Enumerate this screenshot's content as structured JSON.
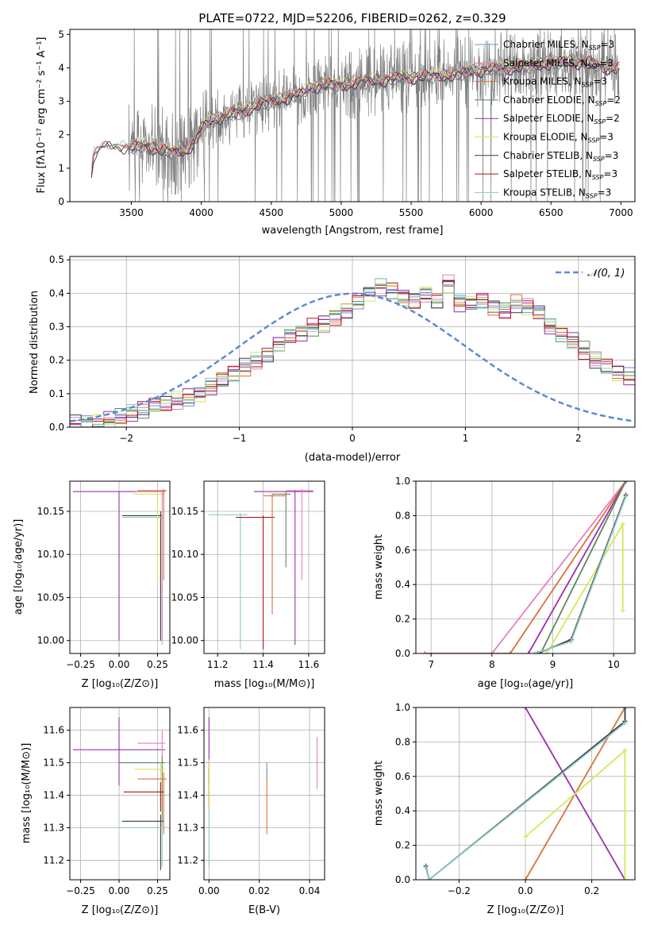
{
  "figure": {
    "title": "PLATE=0722, MJD=52206, FIBERID=0262, z=0.329"
  },
  "series_names": [
    "Chabrier MILES, N_SSP=3",
    "Salpeter MILES, N_SSP=3",
    "Kroupa MILES, N_SSP=3",
    "Chabrier ELODIE, N_SSP=2",
    "Salpeter ELODIE, N_SSP=2",
    "Kroupa ELODIE, N_SSP=3",
    "Chabrier STELIB, N_SSP=3",
    "Salpeter STELIB, N_SSP=3",
    "Kroupa STELIB, N_SSP=3"
  ],
  "legend_entries": [
    {
      "pre": "Chabrier MILES, N",
      "sub": "SSP",
      "post": "=3",
      "color": "#6f8fe6"
    },
    {
      "pre": "Salpeter MILES, N",
      "sub": "SSP",
      "post": "=3",
      "color": "#e67fbf"
    },
    {
      "pre": "Kroupa MILES, N",
      "sub": "SSP",
      "post": "=3",
      "color": "#d9733a"
    },
    {
      "pre": "Chabrier ELODIE, N",
      "sub": "SSP",
      "post": "=2",
      "color": "#5c8a5c"
    },
    {
      "pre": "Salpeter ELODIE, N",
      "sub": "SSP",
      "post": "=2",
      "color": "#9b2fae"
    },
    {
      "pre": "Kroupa ELODIE, N",
      "sub": "SSP",
      "post": "=3",
      "color": "#d4e85a"
    },
    {
      "pre": "Chabrier STELIB, N",
      "sub": "SSP",
      "post": "=3",
      "color": "#3a3a3a"
    },
    {
      "pre": "Salpeter STELIB, N",
      "sub": "SSP",
      "post": "=3",
      "color": "#b01515"
    },
    {
      "pre": "Kroupa STELIB, N",
      "sub": "SSP",
      "post": "=3",
      "color": "#8fc9c9"
    }
  ],
  "colors": {
    "data": "#808080",
    "gaussian": "#5b8bd6",
    "grid": "#b0b0b0"
  },
  "panels": {
    "spectrum": {
      "xlabel": "wavelength [Angstrom, rest frame]",
      "ylabel": "Flux [fλ10⁻¹⁷ erg cm⁻² s⁻¹ A⁻¹]",
      "xticks": [
        "3500",
        "4000",
        "4500",
        "5000",
        "5500",
        "6000",
        "6500",
        "7000"
      ],
      "yticks": [
        "0",
        "1",
        "2",
        "3",
        "4",
        "5"
      ]
    },
    "residuals": {
      "xlabel": "(data-model)/error",
      "ylabel": "Normed distribution",
      "xticks": [
        "−2",
        "−1",
        "0",
        "1",
        "2"
      ],
      "yticks": [
        "0.0",
        "0.1",
        "0.2",
        "0.3",
        "0.4",
        "0.5"
      ],
      "legend": "𝒩(0, 1)"
    },
    "age_z": {
      "xlabel": "Z [log₁₀(Z/Z⊙)]",
      "ylabel": "age  [log₁₀(age/yr)]",
      "xticks": [
        "−0.25",
        "0.00",
        "0.25"
      ],
      "yticks": [
        "10.00",
        "10.05",
        "10.10",
        "10.15"
      ]
    },
    "age_mass": {
      "xlabel": "mass [log₁₀(M/M⊙)]",
      "xticks": [
        "11.2",
        "11.4",
        "11.6"
      ],
      "yticks": [
        "10.00",
        "10.05",
        "10.10",
        "10.15"
      ]
    },
    "mw_age": {
      "xlabel": "age  [log₁₀(age/yr)]",
      "ylabel": "mass weight",
      "xticks": [
        "7",
        "8",
        "9",
        "10"
      ],
      "yticks": [
        "0.0",
        "0.2",
        "0.4",
        "0.6",
        "0.8",
        "1.0"
      ]
    },
    "mass_z": {
      "xlabel": "Z [log₁₀(Z/Z⊙)]",
      "ylabel": "mass [log₁₀(M/M⊙)]",
      "xticks": [
        "−0.25",
        "0.00",
        "0.25"
      ],
      "yticks": [
        "11.2",
        "11.3",
        "11.4",
        "11.5",
        "11.6"
      ]
    },
    "mass_ebv": {
      "xlabel": "E(B-V)",
      "xticks": [
        "0.00",
        "0.02",
        "0.04"
      ],
      "yticks": [
        "11.2",
        "11.3",
        "11.4",
        "11.5",
        "11.6"
      ]
    },
    "mw_z": {
      "xlabel": "Z [log₁₀(Z/Z⊙)]",
      "ylabel": "mass weight",
      "xticks": [
        "−0.2",
        "0.0",
        "0.2"
      ],
      "yticks": [
        "0.0",
        "0.2",
        "0.4",
        "0.6",
        "0.8",
        "1.0"
      ]
    }
  },
  "chart_data": [
    {
      "type": "line",
      "title": "PLATE=0722, MJD=52206, FIBERID=0262, z=0.329",
      "xlabel": "wavelength [Angstrom, rest frame]",
      "ylabel": "Flux",
      "xlim": [
        3060,
        7100
      ],
      "ylim": [
        0,
        5.15
      ],
      "continuum_model": {
        "x": [
          3200,
          3230,
          3300,
          3400,
          3500,
          3600,
          3700,
          3800,
          3900,
          3950,
          4000,
          4100,
          4200,
          4300,
          4400,
          4500,
          4600,
          4700,
          4800,
          4900,
          5000,
          5200,
          5400,
          5600,
          5800,
          6000,
          6200,
          6400,
          6600,
          6800,
          6900
        ],
        "y": [
          0.3,
          1.4,
          1.65,
          1.7,
          1.6,
          1.7,
          1.55,
          1.5,
          1.55,
          1.8,
          2.2,
          2.5,
          2.6,
          2.7,
          2.9,
          3.0,
          3.1,
          3.2,
          3.45,
          3.5,
          3.5,
          3.6,
          3.7,
          3.75,
          3.8,
          3.95,
          4.0,
          4.1,
          4.2,
          4.15,
          4.0
        ]
      }
    },
    {
      "type": "bar",
      "title": "",
      "xlabel": "(data-model)/error",
      "ylabel": "Normed distribution",
      "xlim": [
        -2.5,
        2.5
      ],
      "ylim": [
        0,
        0.51
      ],
      "bin_width": 0.1,
      "bin_start": -2.5,
      "values": [
        0.01,
        0.01,
        0.015,
        0.02,
        0.03,
        0.04,
        0.05,
        0.065,
        0.07,
        0.08,
        0.09,
        0.1,
        0.12,
        0.14,
        0.16,
        0.18,
        0.2,
        0.22,
        0.25,
        0.27,
        0.28,
        0.3,
        0.31,
        0.33,
        0.35,
        0.38,
        0.4,
        0.42,
        0.41,
        0.39,
        0.38,
        0.4,
        0.38,
        0.43,
        0.37,
        0.37,
        0.38,
        0.36,
        0.35,
        0.37,
        0.36,
        0.34,
        0.3,
        0.28,
        0.26,
        0.23,
        0.2,
        0.18,
        0.16,
        0.15
      ],
      "gaussian": {
        "name": "𝒩(0, 1)",
        "mean": 0,
        "sigma": 1
      }
    },
    {
      "type": "scatter",
      "xlabel": "Z [log₁₀(Z/Z⊙)]",
      "ylabel": "age  [log₁₀(age/yr)]",
      "xlim": [
        -0.32,
        0.33
      ],
      "ylim": [
        9.985,
        10.185
      ],
      "errorbars": [
        {
          "x": 0.0,
          "y": 10.173,
          "xlo": -0.3,
          "xhi": 0.3,
          "ylo": 10.0,
          "yhi": 10.173,
          "color": "#9b2fae"
        },
        {
          "x": 0.27,
          "y": 10.145,
          "xlo": 0.02,
          "xhi": 0.28,
          "ylo": 10.0,
          "yhi": 10.15,
          "color": "#3a3a3a"
        },
        {
          "x": 0.28,
          "y": 10.143,
          "xlo": 0.02,
          "xhi": 0.29,
          "ylo": 9.995,
          "yhi": 10.146,
          "color": "#8fc9c9"
        },
        {
          "x": 0.25,
          "y": 10.17,
          "xlo": 0.09,
          "xhi": 0.3,
          "ylo": 10.07,
          "yhi": 10.172,
          "color": "#d4e85a"
        },
        {
          "x": 0.28,
          "y": 10.173,
          "xlo": 0.11,
          "xhi": 0.3,
          "ylo": 10.0,
          "yhi": 10.175,
          "color": "#e67fbf"
        },
        {
          "x": 0.29,
          "y": 10.174,
          "xlo": 0.12,
          "xhi": 0.31,
          "ylo": 10.07,
          "yhi": 10.176,
          "color": "#d9733a"
        }
      ]
    },
    {
      "type": "scatter",
      "xlabel": "mass [log₁₀(M/M⊙)]",
      "ylabel": "",
      "xlim": [
        11.14,
        11.67
      ],
      "ylim": [
        9.985,
        10.185
      ],
      "errorbars": [
        {
          "x": 11.3,
          "y": 10.146,
          "xlo": 11.16,
          "xhi": 11.33,
          "ylo": 9.99,
          "yhi": 10.148,
          "color": "#8fc9c9"
        },
        {
          "x": 11.4,
          "y": 10.143,
          "xlo": 11.28,
          "xhi": 11.45,
          "ylo": 9.99,
          "yhi": 10.145,
          "color": "#b01515"
        },
        {
          "x": 11.44,
          "y": 10.168,
          "xlo": 11.4,
          "xhi": 11.5,
          "ylo": 10.03,
          "yhi": 10.17,
          "color": "#d9733a"
        },
        {
          "x": 11.5,
          "y": 10.17,
          "xlo": 11.44,
          "xhi": 11.52,
          "ylo": 10.085,
          "yhi": 10.172,
          "color": "#5c8a5c"
        },
        {
          "x": 11.54,
          "y": 10.173,
          "xlo": 11.36,
          "xhi": 11.62,
          "ylo": 9.995,
          "yhi": 10.175,
          "color": "#9b2fae"
        },
        {
          "x": 11.57,
          "y": 10.174,
          "xlo": 11.5,
          "xhi": 11.62,
          "ylo": 10.07,
          "yhi": 10.176,
          "color": "#e67fbf"
        }
      ]
    },
    {
      "type": "line",
      "xlabel": "age  [log₁₀(age/yr)]",
      "ylabel": "mass weight",
      "xlim": [
        6.75,
        10.35
      ],
      "ylim": [
        0,
        1
      ],
      "series": [
        {
          "color": "#e67fbf",
          "x": [
            6.9,
            8.0,
            10.2
          ],
          "y": [
            0.0,
            0.0,
            1.0
          ]
        },
        {
          "color": "#d9733a",
          "x": [
            6.9,
            8.3,
            10.2
          ],
          "y": [
            0.0,
            0.0,
            1.0
          ]
        },
        {
          "color": "#9b2fae",
          "x": [
            8.6,
            10.2
          ],
          "y": [
            0.0,
            1.0
          ]
        },
        {
          "color": "#5c8a5c",
          "x": [
            8.8,
            10.2
          ],
          "y": [
            0.0,
            1.0
          ]
        },
        {
          "color": "#d4e85a",
          "x": [
            8.9,
            10.15,
            10.15
          ],
          "y": [
            0.0,
            0.75,
            0.25
          ]
        },
        {
          "color": "#3a3a3a",
          "x": [
            8.75,
            9.3,
            10.2
          ],
          "y": [
            0.0,
            0.08,
            0.92
          ]
        },
        {
          "color": "#8fc9c9",
          "x": [
            8.7,
            9.3,
            10.2
          ],
          "y": [
            0.0,
            0.07,
            0.91
          ]
        }
      ]
    },
    {
      "type": "scatter",
      "xlabel": "Z [log₁₀(Z/Z⊙)]",
      "ylabel": "mass [log₁₀(M/M⊙)]",
      "xlim": [
        -0.32,
        0.33
      ],
      "ylim": [
        11.14,
        11.67
      ],
      "errorbars": [
        {
          "x": 0.0,
          "y": 11.54,
          "xlo": -0.3,
          "xhi": 0.3,
          "ylo": 11.43,
          "yhi": 11.64,
          "color": "#9b2fae"
        },
        {
          "x": 0.28,
          "y": 11.56,
          "xlo": 0.12,
          "xhi": 0.3,
          "ylo": 11.5,
          "yhi": 11.6,
          "color": "#e67fbf"
        },
        {
          "x": 0.28,
          "y": 11.5,
          "xlo": 0.0,
          "xhi": 0.3,
          "ylo": 11.3,
          "yhi": 11.52,
          "color": "#5c8a5c"
        },
        {
          "x": 0.27,
          "y": 11.48,
          "xlo": 0.1,
          "xhi": 0.3,
          "ylo": 11.35,
          "yhi": 11.5,
          "color": "#d4e85a"
        },
        {
          "x": 0.29,
          "y": 11.45,
          "xlo": 0.12,
          "xhi": 0.31,
          "ylo": 11.28,
          "yhi": 11.47,
          "color": "#d9733a"
        },
        {
          "x": 0.27,
          "y": 11.41,
          "xlo": 0.03,
          "xhi": 0.29,
          "ylo": 11.35,
          "yhi": 11.44,
          "color": "#b01515"
        },
        {
          "x": 0.27,
          "y": 11.32,
          "xlo": 0.02,
          "xhi": 0.29,
          "ylo": 11.17,
          "yhi": 11.34,
          "color": "#3a3a3a"
        },
        {
          "x": 0.28,
          "y": 11.3,
          "xlo": -0.01,
          "xhi": 0.29,
          "ylo": 11.18,
          "yhi": 11.32,
          "color": "#8fc9c9"
        }
      ]
    },
    {
      "type": "scatter",
      "xlabel": "E(B-V)",
      "ylabel": "",
      "xlim": [
        -0.002,
        0.046
      ],
      "ylim": [
        11.14,
        11.67
      ],
      "errorbars": [
        {
          "x": 0.0,
          "y": 11.54,
          "ylo": 11.43,
          "yhi": 11.64,
          "color": "#9b2fae"
        },
        {
          "x": 0.0,
          "y": 11.42,
          "ylo": 11.36,
          "yhi": 11.48,
          "color": "#b01515"
        },
        {
          "x": 0.0,
          "y": 11.49,
          "ylo": 11.35,
          "yhi": 11.51,
          "color": "#d4e85a"
        },
        {
          "x": 0.0,
          "y": 11.3,
          "ylo": 11.18,
          "yhi": 11.36,
          "color": "#8fc9c9"
        },
        {
          "x": 0.023,
          "y": 11.4,
          "ylo": 11.28,
          "yhi": 11.48,
          "color": "#d9733a"
        },
        {
          "x": 0.023,
          "y": 11.48,
          "ylo": 11.45,
          "yhi": 11.5,
          "color": "#6f8fe6"
        },
        {
          "x": 0.043,
          "y": 11.5,
          "ylo": 11.42,
          "yhi": 11.58,
          "color": "#e67fbf"
        }
      ]
    },
    {
      "type": "line",
      "xlabel": "Z [log₁₀(Z/Z⊙)]",
      "ylabel": "mass weight",
      "xlim": [
        -0.33,
        0.33
      ],
      "ylim": [
        0,
        1
      ],
      "series": [
        {
          "color": "#9b2fae",
          "x": [
            0.0,
            0.3
          ],
          "y": [
            1.0,
            0.0
          ]
        },
        {
          "color": "#d9733a",
          "x": [
            0.0,
            0.3
          ],
          "y": [
            0.0,
            1.0
          ]
        },
        {
          "color": "#d4e85a",
          "x": [
            0.0,
            0.3,
            0.3
          ],
          "y": [
            0.25,
            0.75,
            0.0
          ]
        },
        {
          "color": "#3a3a3a",
          "x": [
            -0.3,
            -0.29,
            0.3,
            0.3
          ],
          "y": [
            0.08,
            0.0,
            0.92,
            1.0
          ]
        },
        {
          "color": "#8fc9c9",
          "x": [
            -0.3,
            -0.29,
            0.3
          ],
          "y": [
            0.07,
            0.0,
            0.91
          ]
        }
      ]
    }
  ]
}
